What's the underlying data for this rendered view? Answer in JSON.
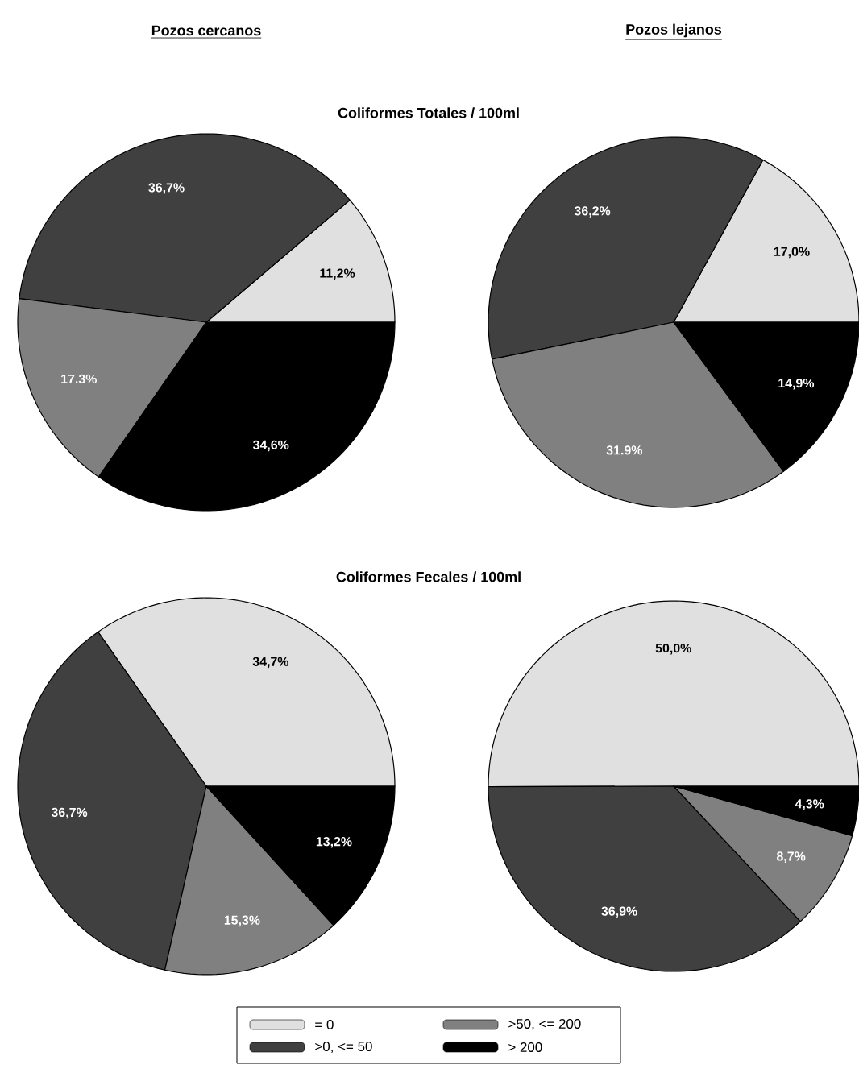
{
  "chart_data": [
    {
      "type": "pie",
      "title": "Pozos cercanos",
      "subtitle": "Coliformes Totales / 100ml",
      "categories": [
        null,
        null,
        null,
        null
      ],
      "values": [
        11.2,
        36.7,
        17.3,
        34.6
      ],
      "colors": [
        "#e0e0e0",
        "#404040",
        "#808080",
        "#000000"
      ],
      "value_labels": [
        "11,2%",
        "36,7%",
        "17.3%",
        "34,6%"
      ]
    },
    {
      "type": "pie",
      "title": "Pozos lejanos",
      "categories": [
        null,
        null,
        null,
        null
      ],
      "values": [
        17.0,
        36.2,
        31.9,
        14.9
      ],
      "colors": [
        "#e0e0e0",
        "#404040",
        "#808080",
        "#000000"
      ],
      "value_labels": [
        "17,0%",
        "36,2%",
        "31.9%",
        "14,9%"
      ]
    },
    {
      "type": "pie",
      "subtitle": "Coliformes Fecales / 100ml",
      "categories": [
        null,
        null,
        null,
        null
      ],
      "values": [
        34.7,
        36.7,
        15.3,
        13.2
      ],
      "colors": [
        "#e0e0e0",
        "#404040",
        "#808080",
        "#000000"
      ],
      "value_labels": [
        "34,7%",
        "36,7%",
        "15,3%",
        "13,2%"
      ]
    },
    {
      "type": "pie",
      "categories": [
        "= 0",
        ">0, <= 50",
        ">50, <= 200",
        "> 200"
      ],
      "values": [
        50.0,
        36.9,
        8.7,
        4.3
      ],
      "colors": [
        "#e0e0e0",
        "#404040",
        "#808080",
        "#000000"
      ],
      "value_labels": [
        "50,0%",
        "36,9%",
        "8,7%",
        "4,3%"
      ],
      "legend": "bottom"
    }
  ]
}
